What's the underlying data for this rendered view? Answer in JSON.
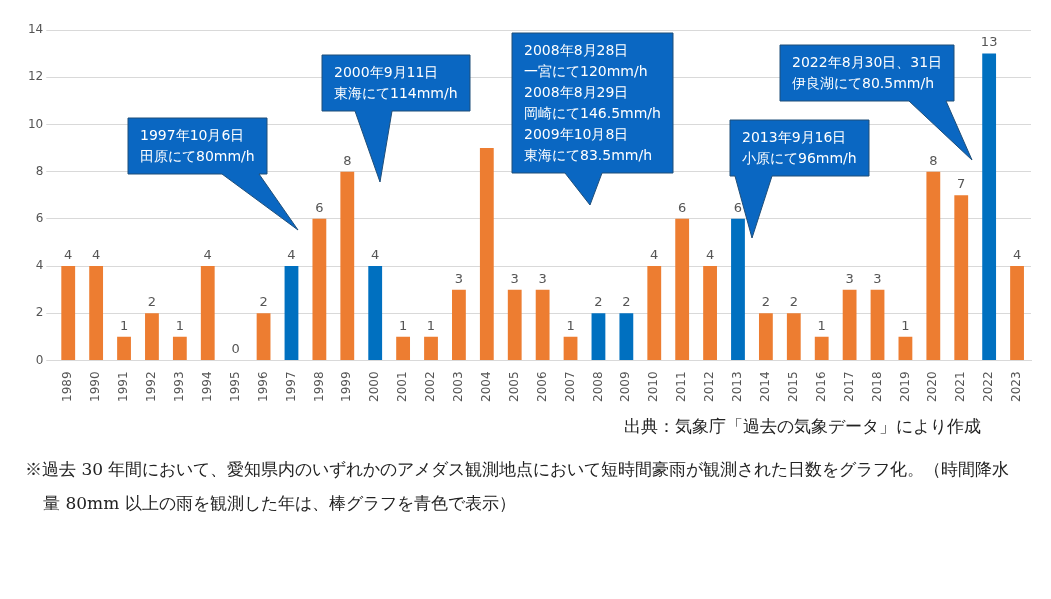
{
  "chart_data": {
    "type": "bar",
    "categories": [
      "1989",
      "1990",
      "1991",
      "1992",
      "1993",
      "1994",
      "1995",
      "1996",
      "1997",
      "1998",
      "1999",
      "2000",
      "2001",
      "2002",
      "2003",
      "2004",
      "2005",
      "2006",
      "2007",
      "2008",
      "2009",
      "2010",
      "2011",
      "2012",
      "2013",
      "2014",
      "2015",
      "2016",
      "2017",
      "2018",
      "2019",
      "2020",
      "2021",
      "2022",
      "2023"
    ],
    "values": [
      4,
      4,
      1,
      2,
      1,
      4,
      0,
      2,
      4,
      6,
      8,
      4,
      1,
      1,
      3,
      9,
      3,
      3,
      1,
      2,
      2,
      4,
      6,
      4,
      6,
      2,
      2,
      1,
      3,
      3,
      1,
      8,
      7,
      13,
      4
    ],
    "colors": [
      "#ed7d31",
      "#ed7d31",
      "#ed7d31",
      "#ed7d31",
      "#ed7d31",
      "#ed7d31",
      "#ed7d31",
      "#ed7d31",
      "#0070c0",
      "#ed7d31",
      "#ed7d31",
      "#0070c0",
      "#ed7d31",
      "#ed7d31",
      "#ed7d31",
      "#ed7d31",
      "#ed7d31",
      "#ed7d31",
      "#ed7d31",
      "#0070c0",
      "#0070c0",
      "#ed7d31",
      "#ed7d31",
      "#ed7d31",
      "#0070c0",
      "#ed7d31",
      "#ed7d31",
      "#ed7d31",
      "#ed7d31",
      "#ed7d31",
      "#ed7d31",
      "#ed7d31",
      "#ed7d31",
      "#0070c0",
      "#ed7d31"
    ],
    "value_labels": [
      "4",
      "4",
      "1",
      "2",
      "1",
      "4",
      "0",
      "2",
      "4",
      "6",
      "8",
      "4",
      "1",
      "1",
      "3",
      null,
      "3",
      "3",
      "1",
      "2",
      "2",
      "4",
      "6",
      "4",
      "6",
      "2",
      "2",
      "1",
      "3",
      "3",
      "1",
      "8",
      "7",
      "13",
      "4"
    ],
    "ylim": [
      0,
      14
    ],
    "yticks": [
      0,
      2,
      4,
      6,
      8,
      10,
      12,
      14
    ],
    "grid": "y",
    "legend": false,
    "annotations": [
      "1997年10月6日田原にて80mm/h",
      "2000年9月11日東海にて114mm/h",
      "2008年8月28日一宮にて120mm/h2008年8月29日岡崎にて146.5mm/h2009年10月8日東海にて83.5mm/h",
      "2013年9月16日小原にて96mm/h",
      "2022年8月30日、31日伊良湖にて80.5mm/h",
      "出典：気象庁「過去の気象データ」により作成",
      "※過去 30 年間において、愛知県内のいずれかのアメダス観測地点において短時間豪雨が観測された日数をグラフ化。（時間降水量 80mm 以上の雨を観測した年は、棒グラフを青色で表示）"
    ]
  }
}
